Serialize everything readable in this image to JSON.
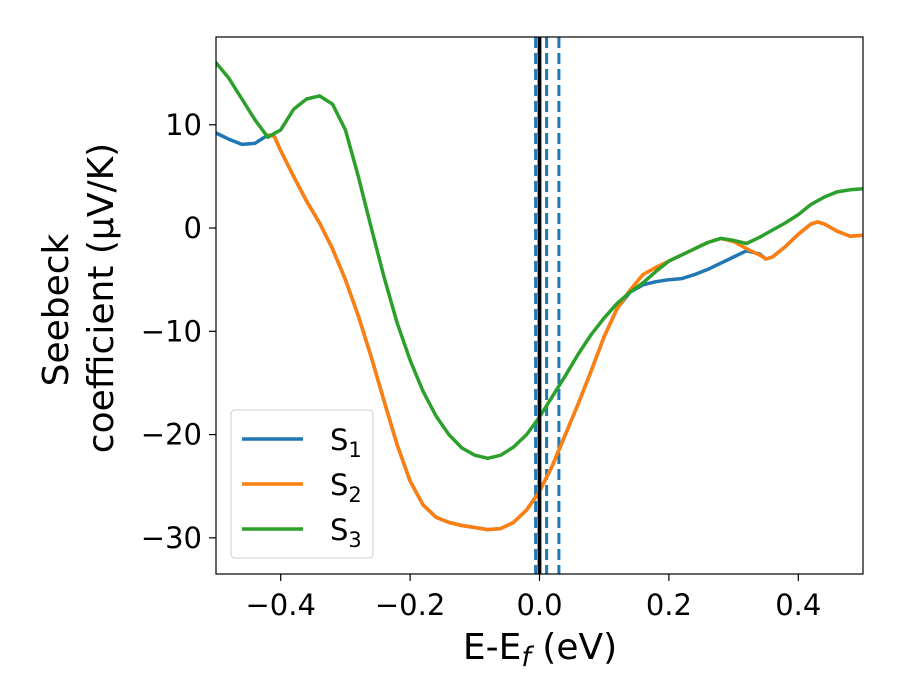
{
  "chart_data": {
    "type": "line",
    "xlabel": {
      "main": "E-E",
      "sub": "f",
      "tail": " (eV)"
    },
    "ylabel_line1": "Seebeck",
    "ylabel_line2": "coefficient  (μV/K)",
    "xlim": [
      -0.5,
      0.5
    ],
    "ylim": [
      -33.5,
      18.5
    ],
    "xticks": [
      -0.4,
      -0.2,
      0.0,
      0.2,
      0.4
    ],
    "xtick_labels": [
      "−0.4",
      "−0.2",
      "0.0",
      "0.2",
      "0.4"
    ],
    "yticks": [
      10,
      0,
      -10,
      -20,
      -30
    ],
    "ytick_labels": [
      "10",
      "0",
      "−10",
      "−20",
      "−30"
    ],
    "legend_position": "lower-left",
    "grid": false,
    "vlines": [
      {
        "x": 0.0,
        "color": "#000000",
        "style": "solid"
      },
      {
        "x": -0.006,
        "color": "#1f77b4",
        "style": "dashed"
      },
      {
        "x": 0.011,
        "color": "#1f77b4",
        "style": "dashed"
      },
      {
        "x": 0.03,
        "color": "#1f77b4",
        "style": "dashed"
      }
    ],
    "series": [
      {
        "name": "S",
        "subscript": "1",
        "color": "#1f77b4",
        "points": [
          [
            -0.5,
            9.2
          ],
          [
            -0.48,
            8.6
          ],
          [
            -0.46,
            8.1
          ],
          [
            -0.44,
            8.2
          ],
          [
            -0.42,
            9.0
          ],
          [
            -0.41,
            8.9
          ],
          [
            -0.4,
            7.5
          ],
          [
            -0.38,
            5.0
          ],
          [
            -0.36,
            2.6
          ],
          [
            -0.34,
            0.5
          ],
          [
            -0.32,
            -2.0
          ],
          [
            -0.3,
            -5.0
          ],
          [
            -0.28,
            -8.5
          ],
          [
            -0.26,
            -12.5
          ],
          [
            -0.24,
            -16.8
          ],
          [
            -0.22,
            -21.0
          ],
          [
            -0.2,
            -24.5
          ],
          [
            -0.18,
            -26.8
          ],
          [
            -0.16,
            -28.0
          ],
          [
            -0.14,
            -28.5
          ],
          [
            -0.12,
            -28.8
          ],
          [
            -0.1,
            -29.0
          ],
          [
            -0.08,
            -29.2
          ],
          [
            -0.06,
            -29.1
          ],
          [
            -0.04,
            -28.5
          ],
          [
            -0.02,
            -27.3
          ],
          [
            0.0,
            -25.5
          ],
          [
            0.02,
            -23.0
          ],
          [
            0.04,
            -20.0
          ],
          [
            0.06,
            -17.0
          ],
          [
            0.08,
            -13.8
          ],
          [
            0.1,
            -10.5
          ],
          [
            0.12,
            -7.8
          ],
          [
            0.14,
            -6.2
          ],
          [
            0.16,
            -5.5
          ],
          [
            0.18,
            -5.2
          ],
          [
            0.2,
            -5.0
          ],
          [
            0.22,
            -4.9
          ],
          [
            0.24,
            -4.5
          ],
          [
            0.26,
            -4.0
          ],
          [
            0.28,
            -3.4
          ],
          [
            0.3,
            -2.8
          ],
          [
            0.32,
            -2.2
          ],
          [
            0.34,
            -2.5
          ],
          [
            0.35,
            -3.0
          ],
          [
            0.36,
            -2.8
          ],
          [
            0.38,
            -1.8
          ],
          [
            0.4,
            -0.6
          ],
          [
            0.42,
            0.4
          ],
          [
            0.43,
            0.6
          ],
          [
            0.44,
            0.4
          ],
          [
            0.46,
            -0.3
          ],
          [
            0.48,
            -0.8
          ],
          [
            0.5,
            -0.7
          ]
        ]
      },
      {
        "name": "S",
        "subscript": "2",
        "color": "#ff7f0e",
        "points": [
          [
            -0.42,
            9.0
          ],
          [
            -0.41,
            8.9
          ],
          [
            -0.4,
            7.5
          ],
          [
            -0.38,
            5.0
          ],
          [
            -0.36,
            2.6
          ],
          [
            -0.34,
            0.5
          ],
          [
            -0.32,
            -2.0
          ],
          [
            -0.3,
            -5.0
          ],
          [
            -0.28,
            -8.5
          ],
          [
            -0.26,
            -12.5
          ],
          [
            -0.24,
            -16.8
          ],
          [
            -0.22,
            -21.0
          ],
          [
            -0.2,
            -24.5
          ],
          [
            -0.18,
            -26.8
          ],
          [
            -0.16,
            -28.0
          ],
          [
            -0.14,
            -28.5
          ],
          [
            -0.12,
            -28.8
          ],
          [
            -0.1,
            -29.0
          ],
          [
            -0.08,
            -29.2
          ],
          [
            -0.06,
            -29.1
          ],
          [
            -0.04,
            -28.5
          ],
          [
            -0.02,
            -27.3
          ],
          [
            0.0,
            -25.5
          ],
          [
            0.02,
            -23.0
          ],
          [
            0.04,
            -20.0
          ],
          [
            0.06,
            -17.0
          ],
          [
            0.08,
            -13.8
          ],
          [
            0.1,
            -10.5
          ],
          [
            0.12,
            -7.8
          ],
          [
            0.14,
            -6.0
          ],
          [
            0.16,
            -4.5
          ],
          [
            0.18,
            -3.8
          ],
          [
            0.2,
            -3.2
          ],
          [
            0.22,
            -2.6
          ],
          [
            0.24,
            -2.0
          ],
          [
            0.26,
            -1.4
          ],
          [
            0.28,
            -1.0
          ],
          [
            0.3,
            -1.3
          ],
          [
            0.32,
            -2.0
          ],
          [
            0.34,
            -2.6
          ],
          [
            0.35,
            -3.0
          ],
          [
            0.36,
            -2.8
          ],
          [
            0.38,
            -1.8
          ],
          [
            0.4,
            -0.6
          ],
          [
            0.42,
            0.4
          ],
          [
            0.43,
            0.6
          ],
          [
            0.44,
            0.4
          ],
          [
            0.46,
            -0.3
          ],
          [
            0.48,
            -0.8
          ],
          [
            0.5,
            -0.7
          ]
        ]
      },
      {
        "name": "S",
        "subscript": "3",
        "color": "#2ca02c",
        "points": [
          [
            -0.5,
            16.0
          ],
          [
            -0.48,
            14.5
          ],
          [
            -0.46,
            12.5
          ],
          [
            -0.44,
            10.5
          ],
          [
            -0.42,
            8.8
          ],
          [
            -0.4,
            9.5
          ],
          [
            -0.38,
            11.5
          ],
          [
            -0.36,
            12.5
          ],
          [
            -0.34,
            12.8
          ],
          [
            -0.32,
            12.0
          ],
          [
            -0.3,
            9.5
          ],
          [
            -0.28,
            5.0
          ],
          [
            -0.26,
            0.0
          ],
          [
            -0.24,
            -4.8
          ],
          [
            -0.22,
            -9.2
          ],
          [
            -0.2,
            -12.8
          ],
          [
            -0.18,
            -15.8
          ],
          [
            -0.16,
            -18.2
          ],
          [
            -0.14,
            -20.0
          ],
          [
            -0.12,
            -21.3
          ],
          [
            -0.1,
            -22.0
          ],
          [
            -0.08,
            -22.3
          ],
          [
            -0.06,
            -22.0
          ],
          [
            -0.04,
            -21.2
          ],
          [
            -0.02,
            -20.0
          ],
          [
            0.0,
            -18.3
          ],
          [
            0.02,
            -16.3
          ],
          [
            0.04,
            -14.3
          ],
          [
            0.06,
            -12.2
          ],
          [
            0.08,
            -10.3
          ],
          [
            0.1,
            -8.7
          ],
          [
            0.12,
            -7.3
          ],
          [
            0.14,
            -6.2
          ],
          [
            0.16,
            -5.3
          ],
          [
            0.18,
            -4.2
          ],
          [
            0.2,
            -3.2
          ],
          [
            0.22,
            -2.6
          ],
          [
            0.24,
            -2.0
          ],
          [
            0.26,
            -1.4
          ],
          [
            0.28,
            -1.0
          ],
          [
            0.3,
            -1.2
          ],
          [
            0.32,
            -1.5
          ],
          [
            0.34,
            -0.9
          ],
          [
            0.36,
            -0.2
          ],
          [
            0.38,
            0.5
          ],
          [
            0.4,
            1.3
          ],
          [
            0.42,
            2.3
          ],
          [
            0.44,
            3.0
          ],
          [
            0.46,
            3.5
          ],
          [
            0.48,
            3.7
          ],
          [
            0.5,
            3.8
          ]
        ]
      }
    ]
  }
}
